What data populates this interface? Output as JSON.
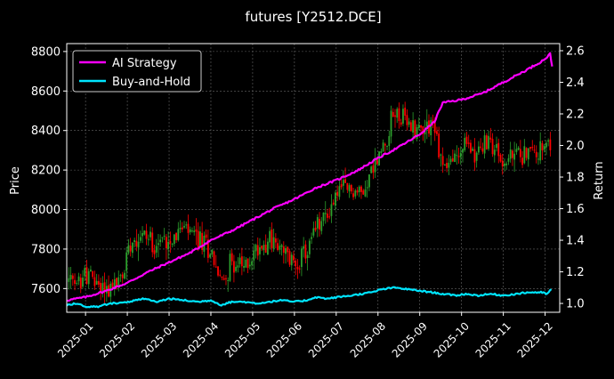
{
  "chart_data": {
    "type": "candlestick+line",
    "title": "futures [Y2512.DCE]",
    "xlabel": "",
    "ylabel_left": "Price",
    "ylabel_right": "Return",
    "x_ticks": [
      "2025-01",
      "2025-02",
      "2025-03",
      "2025-04",
      "2025-05",
      "2025-06",
      "2025-07",
      "2025-08",
      "2025-09",
      "2025-10",
      "2025-11",
      "2025-12"
    ],
    "y_left_ticks": [
      7600,
      7800,
      8000,
      8200,
      8400,
      8600,
      8800
    ],
    "y_right_ticks": [
      "1.0",
      "1.2",
      "1.4",
      "1.6",
      "1.8",
      "2.0",
      "2.2",
      "2.4",
      "2.6"
    ],
    "y_left_range": [
      7480,
      8840
    ],
    "y_right_range": [
      0.944,
      2.645
    ],
    "x_range_months": [
      0.55,
      12.35
    ],
    "grid": true,
    "legend_position": "top-left",
    "colors": {
      "background": "#000000",
      "up_candle": "#2ca02c",
      "down_candle": "#ff0000",
      "ai_strategy": "#ff00ff",
      "buy_and_hold": "#00e5ff",
      "grid": "#666666",
      "text": "#ffffff"
    },
    "price_anchors": [
      {
        "x": 0.55,
        "y": 7650
      },
      {
        "x": 0.75,
        "y": 7600
      },
      {
        "x": 1.0,
        "y": 7680
      },
      {
        "x": 1.3,
        "y": 7620
      },
      {
        "x": 1.6,
        "y": 7600
      },
      {
        "x": 1.9,
        "y": 7660
      },
      {
        "x": 2.05,
        "y": 7850
      },
      {
        "x": 2.35,
        "y": 7880
      },
      {
        "x": 2.7,
        "y": 7830
      },
      {
        "x": 3.0,
        "y": 7860
      },
      {
        "x": 3.35,
        "y": 7900
      },
      {
        "x": 3.7,
        "y": 7850
      },
      {
        "x": 4.0,
        "y": 7800
      },
      {
        "x": 4.25,
        "y": 7620
      },
      {
        "x": 4.5,
        "y": 7740
      },
      {
        "x": 4.8,
        "y": 7700
      },
      {
        "x": 5.1,
        "y": 7800
      },
      {
        "x": 5.4,
        "y": 7860
      },
      {
        "x": 5.7,
        "y": 7780
      },
      {
        "x": 6.0,
        "y": 7730
      },
      {
        "x": 6.3,
        "y": 7780
      },
      {
        "x": 6.5,
        "y": 7900
      },
      {
        "x": 6.8,
        "y": 7980
      },
      {
        "x": 7.05,
        "y": 8100
      },
      {
        "x": 7.35,
        "y": 8100
      },
      {
        "x": 7.6,
        "y": 8080
      },
      {
        "x": 7.85,
        "y": 8200
      },
      {
        "x": 8.1,
        "y": 8300
      },
      {
        "x": 8.4,
        "y": 8500
      },
      {
        "x": 8.7,
        "y": 8430
      },
      {
        "x": 9.0,
        "y": 8410
      },
      {
        "x": 9.3,
        "y": 8450
      },
      {
        "x": 9.55,
        "y": 8220
      },
      {
        "x": 9.85,
        "y": 8260
      },
      {
        "x": 10.1,
        "y": 8330
      },
      {
        "x": 10.4,
        "y": 8290
      },
      {
        "x": 10.7,
        "y": 8350
      },
      {
        "x": 11.0,
        "y": 8230
      },
      {
        "x": 11.3,
        "y": 8280
      },
      {
        "x": 11.6,
        "y": 8290
      },
      {
        "x": 11.9,
        "y": 8300
      },
      {
        "x": 12.05,
        "y": 8290
      },
      {
        "x": 12.15,
        "y": 8330
      }
    ],
    "series": [
      {
        "name": "AI Strategy",
        "points": [
          {
            "x": 0.55,
            "y": 1.02
          },
          {
            "x": 1.0,
            "y": 1.04
          },
          {
            "x": 1.5,
            "y": 1.08
          },
          {
            "x": 2.0,
            "y": 1.13
          },
          {
            "x": 2.5,
            "y": 1.2
          },
          {
            "x": 3.0,
            "y": 1.26
          },
          {
            "x": 3.5,
            "y": 1.32
          },
          {
            "x": 4.0,
            "y": 1.4
          },
          {
            "x": 4.5,
            "y": 1.46
          },
          {
            "x": 5.0,
            "y": 1.53
          },
          {
            "x": 5.5,
            "y": 1.6
          },
          {
            "x": 6.0,
            "y": 1.66
          },
          {
            "x": 6.5,
            "y": 1.73
          },
          {
            "x": 7.0,
            "y": 1.78
          },
          {
            "x": 7.5,
            "y": 1.84
          },
          {
            "x": 8.0,
            "y": 1.92
          },
          {
            "x": 8.5,
            "y": 1.99
          },
          {
            "x": 9.0,
            "y": 2.07
          },
          {
            "x": 9.35,
            "y": 2.15
          },
          {
            "x": 9.55,
            "y": 2.27
          },
          {
            "x": 10.0,
            "y": 2.29
          },
          {
            "x": 10.5,
            "y": 2.33
          },
          {
            "x": 11.0,
            "y": 2.4
          },
          {
            "x": 11.5,
            "y": 2.47
          },
          {
            "x": 11.9,
            "y": 2.53
          },
          {
            "x": 12.05,
            "y": 2.56
          },
          {
            "x": 12.12,
            "y": 2.58
          },
          {
            "x": 12.17,
            "y": 2.5
          }
        ]
      },
      {
        "name": "Buy-and-Hold",
        "points": [
          {
            "x": 0.55,
            "y": 0.99
          },
          {
            "x": 0.75,
            "y": 1.0
          },
          {
            "x": 1.0,
            "y": 0.98
          },
          {
            "x": 1.3,
            "y": 0.98
          },
          {
            "x": 1.6,
            "y": 1.0
          },
          {
            "x": 2.05,
            "y": 1.01
          },
          {
            "x": 2.4,
            "y": 1.03
          },
          {
            "x": 2.7,
            "y": 1.01
          },
          {
            "x": 3.0,
            "y": 1.03
          },
          {
            "x": 3.35,
            "y": 1.02
          },
          {
            "x": 3.7,
            "y": 1.01
          },
          {
            "x": 4.0,
            "y": 1.02
          },
          {
            "x": 4.25,
            "y": 0.99
          },
          {
            "x": 4.5,
            "y": 1.01
          },
          {
            "x": 4.8,
            "y": 1.01
          },
          {
            "x": 5.1,
            "y": 1.0
          },
          {
            "x": 5.4,
            "y": 1.01
          },
          {
            "x": 5.7,
            "y": 1.02
          },
          {
            "x": 6.0,
            "y": 1.01
          },
          {
            "x": 6.3,
            "y": 1.02
          },
          {
            "x": 6.5,
            "y": 1.04
          },
          {
            "x": 6.8,
            "y": 1.03
          },
          {
            "x": 7.05,
            "y": 1.04
          },
          {
            "x": 7.35,
            "y": 1.05
          },
          {
            "x": 7.6,
            "y": 1.06
          },
          {
            "x": 7.85,
            "y": 1.07
          },
          {
            "x": 8.1,
            "y": 1.09
          },
          {
            "x": 8.4,
            "y": 1.1
          },
          {
            "x": 8.7,
            "y": 1.09
          },
          {
            "x": 9.0,
            "y": 1.08
          },
          {
            "x": 9.3,
            "y": 1.07
          },
          {
            "x": 9.55,
            "y": 1.06
          },
          {
            "x": 9.85,
            "y": 1.05
          },
          {
            "x": 10.1,
            "y": 1.06
          },
          {
            "x": 10.4,
            "y": 1.05
          },
          {
            "x": 10.7,
            "y": 1.06
          },
          {
            "x": 11.0,
            "y": 1.05
          },
          {
            "x": 11.3,
            "y": 1.06
          },
          {
            "x": 11.6,
            "y": 1.07
          },
          {
            "x": 11.9,
            "y": 1.07
          },
          {
            "x": 12.05,
            "y": 1.06
          },
          {
            "x": 12.15,
            "y": 1.09
          }
        ]
      }
    ]
  }
}
